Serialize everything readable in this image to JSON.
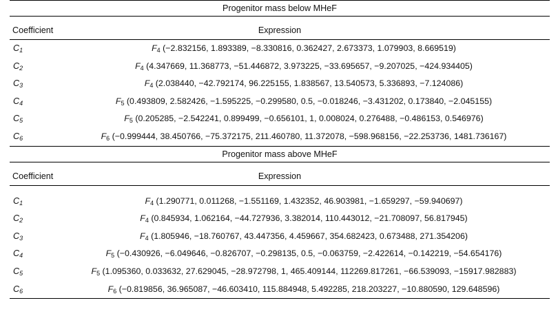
{
  "sections": [
    {
      "title": "Progenitor mass below MHeF",
      "header": {
        "coefficient": "Coefficient",
        "expression": "Expression"
      },
      "rows": [
        {
          "coef": "C",
          "coef_sub": "1",
          "fn": "F",
          "fn_sub": "4",
          "args": "(−2.832156, 1.893389, −8.330816, 0.362427, 2.673373, 1.079903, 8.669519)"
        },
        {
          "coef": "C",
          "coef_sub": "2",
          "fn": "F",
          "fn_sub": "4",
          "args": "(4.347669, 11.368773, −51.446872, 3.973225, −33.695657, −9.207025, −424.934405)"
        },
        {
          "coef": "C",
          "coef_sub": "3",
          "fn": "F",
          "fn_sub": "4",
          "args": "(2.038440, −42.792174, 96.225155, 1.838567, 13.540573, 5.336893, −7.124086)"
        },
        {
          "coef": "C",
          "coef_sub": "4",
          "fn": "F",
          "fn_sub": "5",
          "args": "(0.493809, 2.582426, −1.595225, −0.299580, 0.5, −0.018246, −3.431202, 0.173840, −2.045155)"
        },
        {
          "coef": "C",
          "coef_sub": "5",
          "fn": "F",
          "fn_sub": "5",
          "args": "(0.205285, −2.542241, 0.899499, −0.656101, 1, 0.008024, 0.276488, −0.486153, 0.546976)"
        },
        {
          "coef": "C",
          "coef_sub": "6",
          "fn": "F",
          "fn_sub": "6",
          "args": "(−0.999444, 38.450766, −75.372175, 211.460780, 11.372078, −598.968156, −22.253736, 1481.736167)"
        }
      ]
    },
    {
      "title": "Progenitor mass above MHeF",
      "header": {
        "coefficient": "Coefficient",
        "expression": "Expression"
      },
      "rows": [
        {
          "coef": "C",
          "coef_sub": "1",
          "fn": "F",
          "fn_sub": "4",
          "args": "(1.290771, 0.011268, −1.551169, 1.432352, 46.903981, −1.659297, −59.940697)"
        },
        {
          "coef": "C",
          "coef_sub": "2",
          "fn": "F",
          "fn_sub": "4",
          "args": "(0.845934, 1.062164, −44.727936, 3.382014, 110.443012, −21.708097, 56.817945)"
        },
        {
          "coef": "C",
          "coef_sub": "3",
          "fn": "F",
          "fn_sub": "4",
          "args": "(1.805946, −18.760767, 43.447356, 4.459667, 354.682423, 0.673488, 271.354206)"
        },
        {
          "coef": "C",
          "coef_sub": "4",
          "fn": "F",
          "fn_sub": "5",
          "args": "(−0.430926, −6.049646, −0.826707, −0.298135, 0.5, −0.063759, −2.422614, −0.142219, −54.654176)"
        },
        {
          "coef": "C",
          "coef_sub": "5",
          "fn": "F",
          "fn_sub": "5",
          "args": "(1.095360, 0.033632, 27.629045, −28.972798, 1, 465.409144, 112269.817261, −66.539093, −15917.982883)"
        },
        {
          "coef": "C",
          "coef_sub": "6",
          "fn": "F",
          "fn_sub": "6",
          "args": "(−0.819856, 36.965087, −46.603410, 115.884948, 5.492285, 218.203227, −10.880590, 129.648596)"
        }
      ]
    }
  ]
}
